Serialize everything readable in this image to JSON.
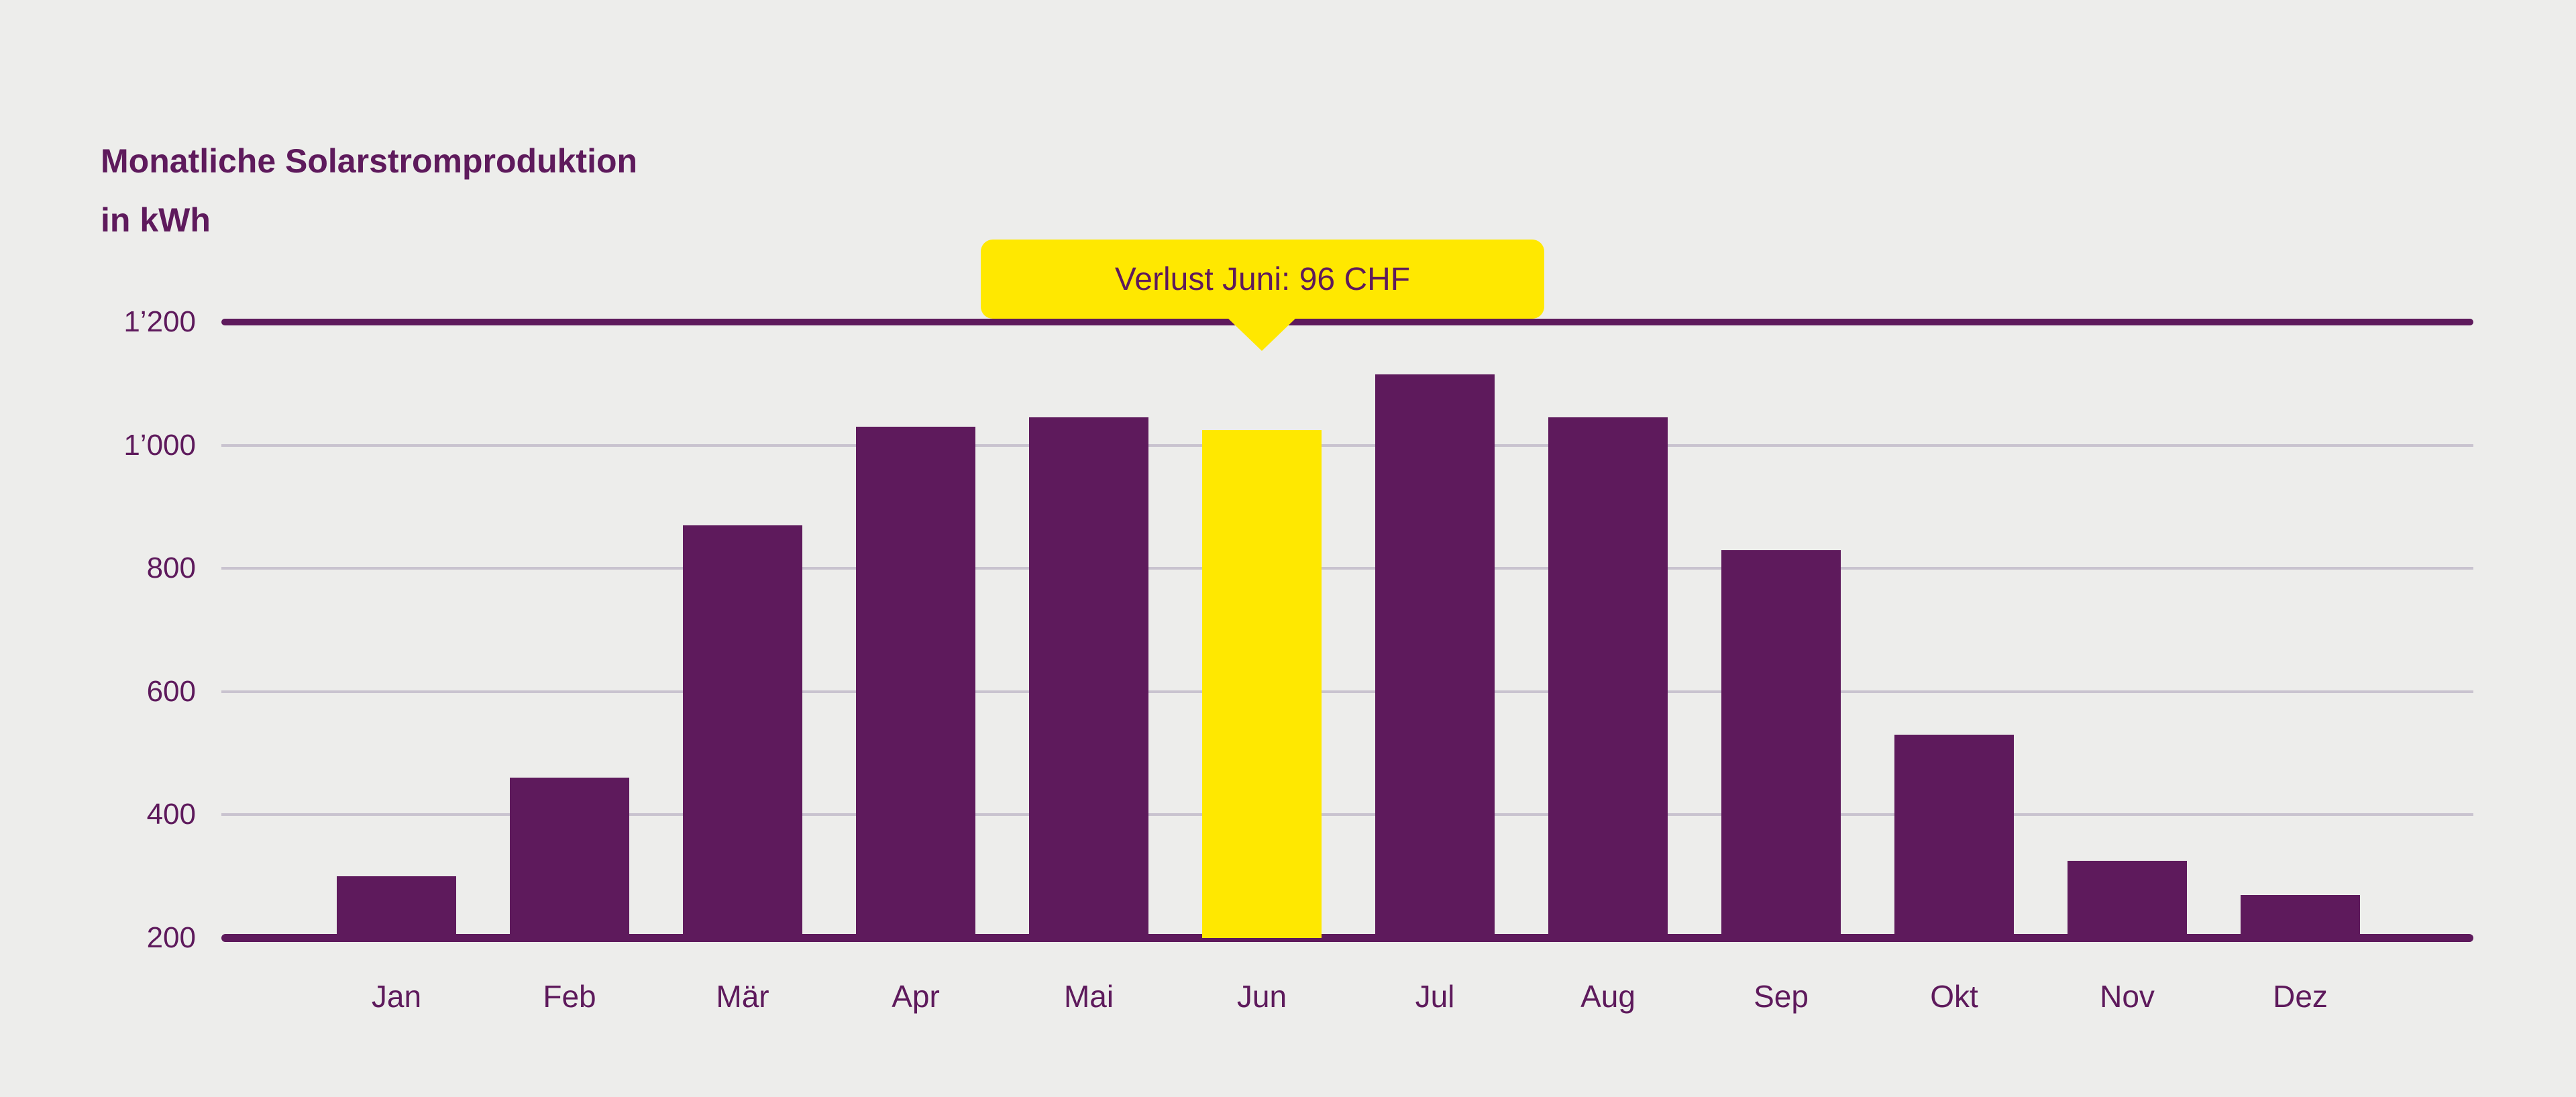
{
  "title": {
    "line1": "Monatliche Solarstromproduktion",
    "line2": "in kWh"
  },
  "tooltip": {
    "text": "Verlust Juni: 96 CHF",
    "target_month": "Jun"
  },
  "colors": {
    "background": "#EDEDEB",
    "bar_purple": "#5E1A5C",
    "bar_highlight_yellow": "#FFE800",
    "grid_minor": "#C9C3CF",
    "grid_major": "#5E1A5C",
    "text_purple": "#5E1A5C"
  },
  "chart_data": {
    "type": "bar",
    "title": "Monatliche Solarstromproduktion in kWh",
    "xlabel": "",
    "ylabel": "kWh",
    "categories": [
      "Jan",
      "Feb",
      "Mär",
      "Apr",
      "Mai",
      "Jun",
      "Jul",
      "Aug",
      "Sep",
      "Okt",
      "Nov",
      "Dez"
    ],
    "values": [
      300,
      460,
      870,
      1030,
      1045,
      1025,
      1115,
      1045,
      830,
      530,
      325,
      270
    ],
    "highlight_category": "Jun",
    "highlight_index": 5,
    "annotation": "Verlust Juni: 96 CHF",
    "ylim": [
      200,
      1200
    ],
    "yticks": {
      "values": [
        200,
        400,
        600,
        800,
        1000,
        1200
      ],
      "labels": [
        "200",
        "400",
        "600",
        "800",
        "1’000",
        "1’200"
      ]
    },
    "grid": "horizontal",
    "legend_position": "none"
  }
}
